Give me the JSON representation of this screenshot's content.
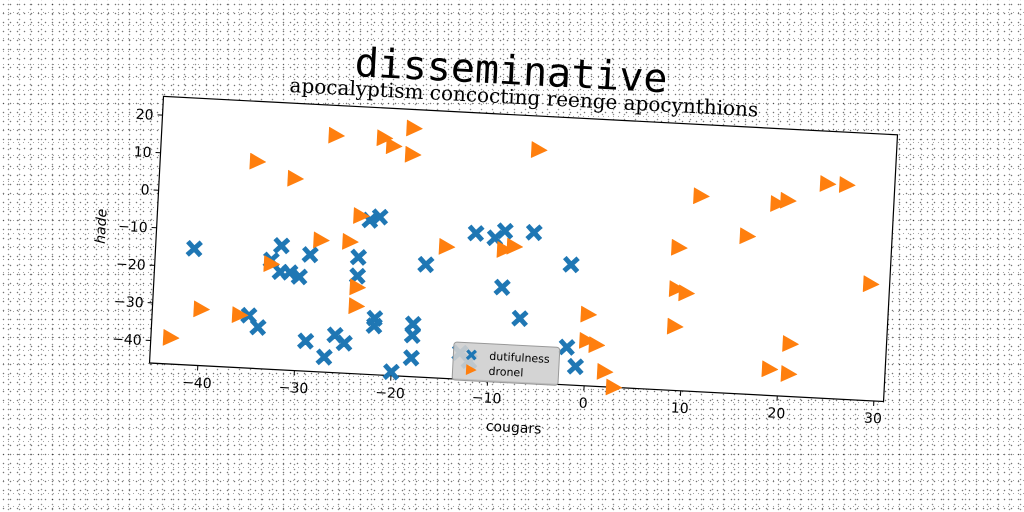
{
  "header": {
    "title": "disseminative"
  },
  "chart_data": {
    "type": "scatter",
    "title": "apocalyptism concocting reenge apocynthions",
    "xlabel": "cougars",
    "ylabel": "hade",
    "xlim": [
      -45,
      31
    ],
    "ylim": [
      -46,
      25
    ],
    "xticks": [
      -40,
      -30,
      -20,
      -10,
      0,
      10,
      20,
      30
    ],
    "yticks": [
      -40,
      -30,
      -20,
      -10,
      0,
      10,
      20
    ],
    "grid": false,
    "legend_position": "bottom-center",
    "series": [
      {
        "name": "dutifulness",
        "marker": "X",
        "color": "#1f77b4",
        "points": [
          [
            -41,
            -15
          ],
          [
            -33,
            -17
          ],
          [
            -32,
            -13
          ],
          [
            -32,
            -20
          ],
          [
            -31,
            -20
          ],
          [
            -30,
            -21
          ],
          [
            -29,
            -15
          ],
          [
            -24,
            -15
          ],
          [
            -24,
            -20
          ],
          [
            -23,
            -5
          ],
          [
            -22,
            -4
          ],
          [
            -17,
            -16
          ],
          [
            -12,
            -7
          ],
          [
            -10,
            -8
          ],
          [
            -9,
            -6
          ],
          [
            -6,
            -6
          ],
          [
            -9,
            -21
          ],
          [
            -7,
            -29
          ],
          [
            -2,
            -14
          ],
          [
            -2,
            -36
          ],
          [
            -35,
            -32
          ],
          [
            -34,
            -35
          ],
          [
            -29,
            -38
          ],
          [
            -26,
            -36
          ],
          [
            -25,
            -38
          ],
          [
            -27,
            -42
          ],
          [
            -22,
            -31
          ],
          [
            -22,
            -33
          ],
          [
            -18,
            -32
          ],
          [
            -18,
            -35
          ],
          [
            -18,
            -41
          ],
          [
            -20,
            -45
          ],
          [
            -13,
            -39
          ],
          [
            -12,
            -41
          ],
          [
            -1,
            -41
          ]
        ]
      },
      {
        "name": "dronel",
        "marker": ">",
        "color": "#ff7f0e",
        "points": [
          [
            -27,
            17
          ],
          [
            -22,
            17
          ],
          [
            -19,
            20
          ],
          [
            -21,
            15
          ],
          [
            -19,
            13
          ],
          [
            -35,
            9
          ],
          [
            -31,
            5
          ],
          [
            -24,
            -4
          ],
          [
            -28,
            -11
          ],
          [
            -25,
            -11
          ],
          [
            -15,
            -11
          ],
          [
            -9,
            -11
          ],
          [
            -8,
            -10
          ],
          [
            -6,
            16
          ],
          [
            -33,
            -18
          ],
          [
            -24,
            -23
          ],
          [
            -24,
            -28
          ],
          [
            -40,
            -31
          ],
          [
            -36,
            -32
          ],
          [
            -43,
            -39
          ],
          [
            0,
            -27
          ],
          [
            0,
            -34
          ],
          [
            1,
            -35
          ],
          [
            2,
            -42
          ],
          [
            3,
            -46
          ],
          [
            9,
            -29
          ],
          [
            9,
            -19
          ],
          [
            10,
            -20
          ],
          [
            9,
            -8
          ],
          [
            11,
            6
          ],
          [
            16,
            -4
          ],
          [
            19,
            5
          ],
          [
            20,
            6
          ],
          [
            19,
            -39
          ],
          [
            21,
            -40
          ],
          [
            21,
            -32
          ],
          [
            24,
            11
          ],
          [
            26,
            11
          ],
          [
            29,
            -15
          ]
        ]
      }
    ]
  }
}
